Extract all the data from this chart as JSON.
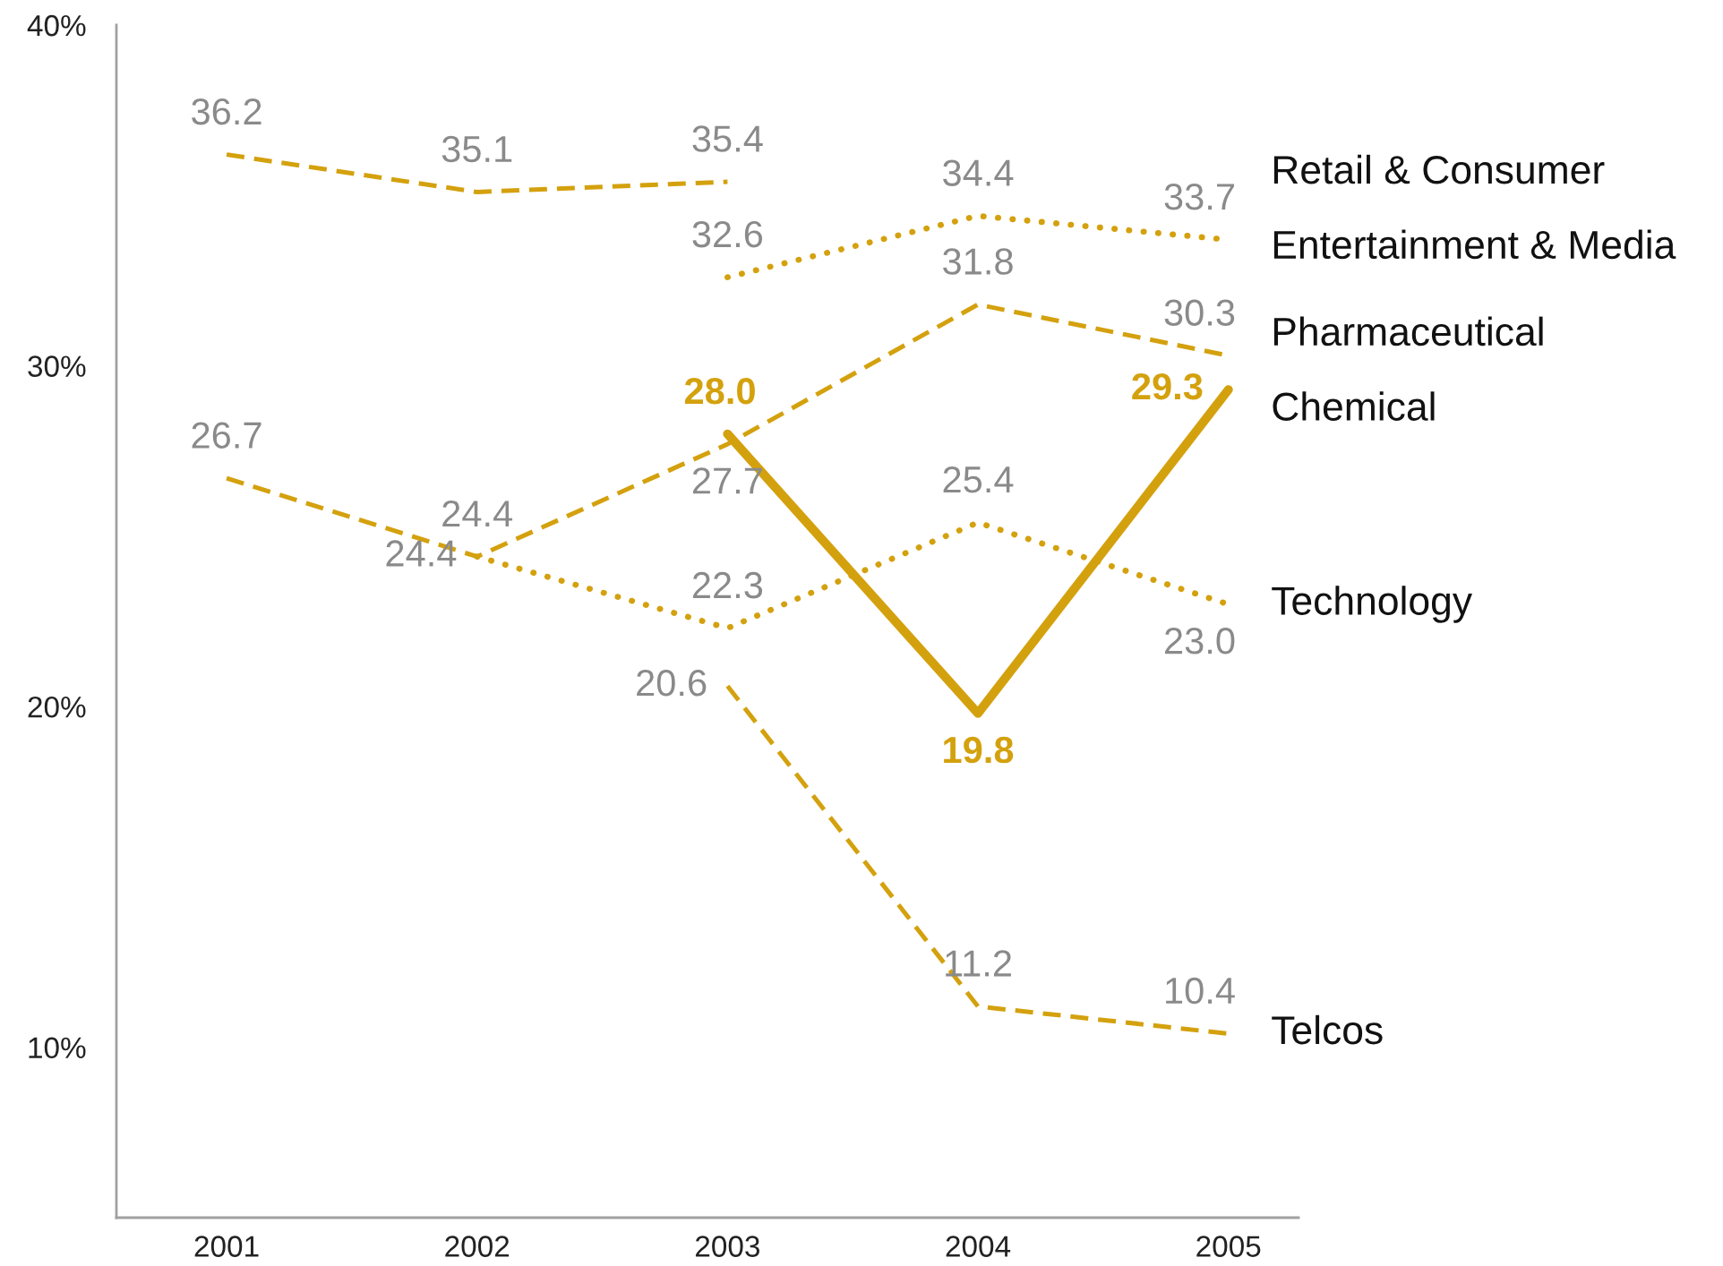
{
  "chart_data": {
    "type": "line",
    "categories": [
      "2001",
      "2002",
      "2003",
      "2004",
      "2005"
    ],
    "ylim": [
      5,
      40
    ],
    "yticks": [
      {
        "value": 10,
        "label": "10%"
      },
      {
        "value": 20,
        "label": "20%"
      },
      {
        "value": 30,
        "label": "30%"
      },
      {
        "value": 40,
        "label": "40%"
      }
    ],
    "grid": false,
    "legend": false,
    "series": [
      {
        "name": "Retail & Consumer",
        "color": "#d4a10e",
        "line_style": "dashed",
        "values": [
          36.2,
          35.1,
          35.4,
          null,
          null
        ],
        "value_labels": [
          "36.2",
          "35.1",
          "35.4",
          null,
          null
        ]
      },
      {
        "name": "Entertainment & Media",
        "color": "#d4a10e",
        "line_style": "dotted",
        "values": [
          null,
          null,
          32.6,
          34.4,
          33.7
        ],
        "value_labels": [
          null,
          null,
          "32.6",
          "34.4",
          "33.7"
        ]
      },
      {
        "name": "Pharmaceutical",
        "color": "#d4a10e",
        "line_style": "dashed",
        "values": [
          26.7,
          24.4,
          27.7,
          31.8,
          30.3
        ],
        "value_labels": [
          "26.7",
          "24.4",
          "27.7",
          "31.8",
          "30.3"
        ]
      },
      {
        "name": "Chemical",
        "color": "#d4a10e",
        "line_style": "solid",
        "values": [
          null,
          null,
          28.0,
          19.8,
          29.3
        ],
        "value_labels": [
          null,
          null,
          "28.0",
          "19.8",
          "29.3"
        ]
      },
      {
        "name": "Technology",
        "color": "#d4a10e",
        "line_style": "dotted",
        "values": [
          null,
          24.4,
          22.3,
          25.4,
          23.0
        ],
        "value_labels": [
          null,
          "24.4",
          "22.3",
          "25.4",
          "23.0"
        ]
      },
      {
        "name": "Telcos",
        "color": "#d4a10e",
        "line_style": "dashed",
        "values": [
          null,
          null,
          20.6,
          11.2,
          10.4
        ],
        "value_labels": [
          null,
          null,
          "20.6",
          "11.2",
          "10.4"
        ]
      }
    ]
  }
}
